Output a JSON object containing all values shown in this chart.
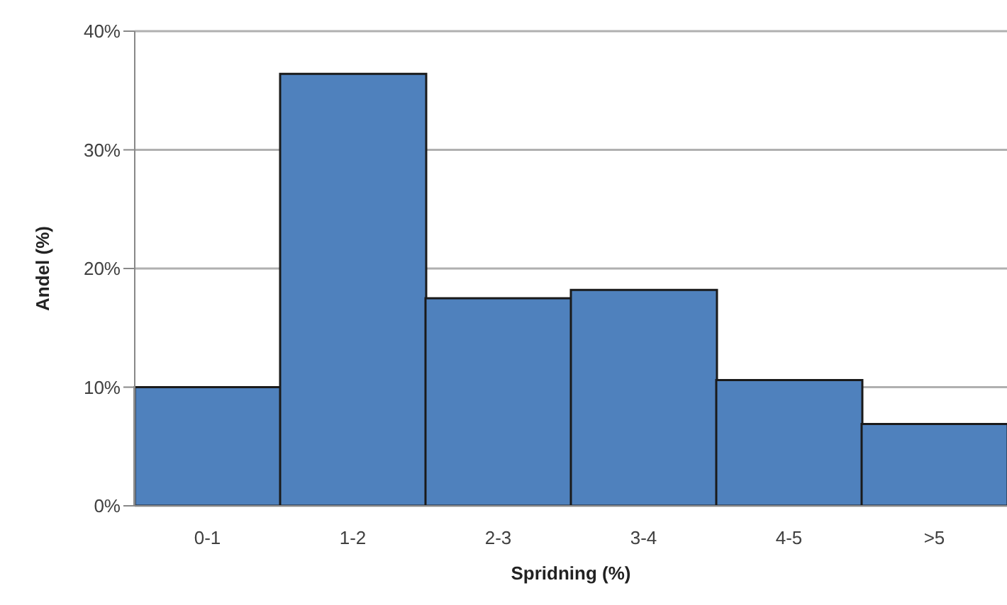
{
  "chart_data": {
    "type": "bar",
    "xlabel": "Spridning (%)",
    "ylabel": "Andel (%)",
    "categories": [
      "0-1",
      "1-2",
      "2-3",
      "3-4",
      "4-5",
      ">5"
    ],
    "values": [
      10,
      36.4,
      17.5,
      18.2,
      10.6,
      6.9
    ],
    "color": "#4f81bd",
    "ylim": [
      0,
      40
    ],
    "yticks": [
      {
        "value": 0,
        "label": "0%"
      },
      {
        "value": 10,
        "label": "10%"
      },
      {
        "value": 20,
        "label": "20%"
      },
      {
        "value": 30,
        "label": "30%"
      },
      {
        "value": 40,
        "label": "40%"
      }
    ],
    "grid": "y"
  }
}
